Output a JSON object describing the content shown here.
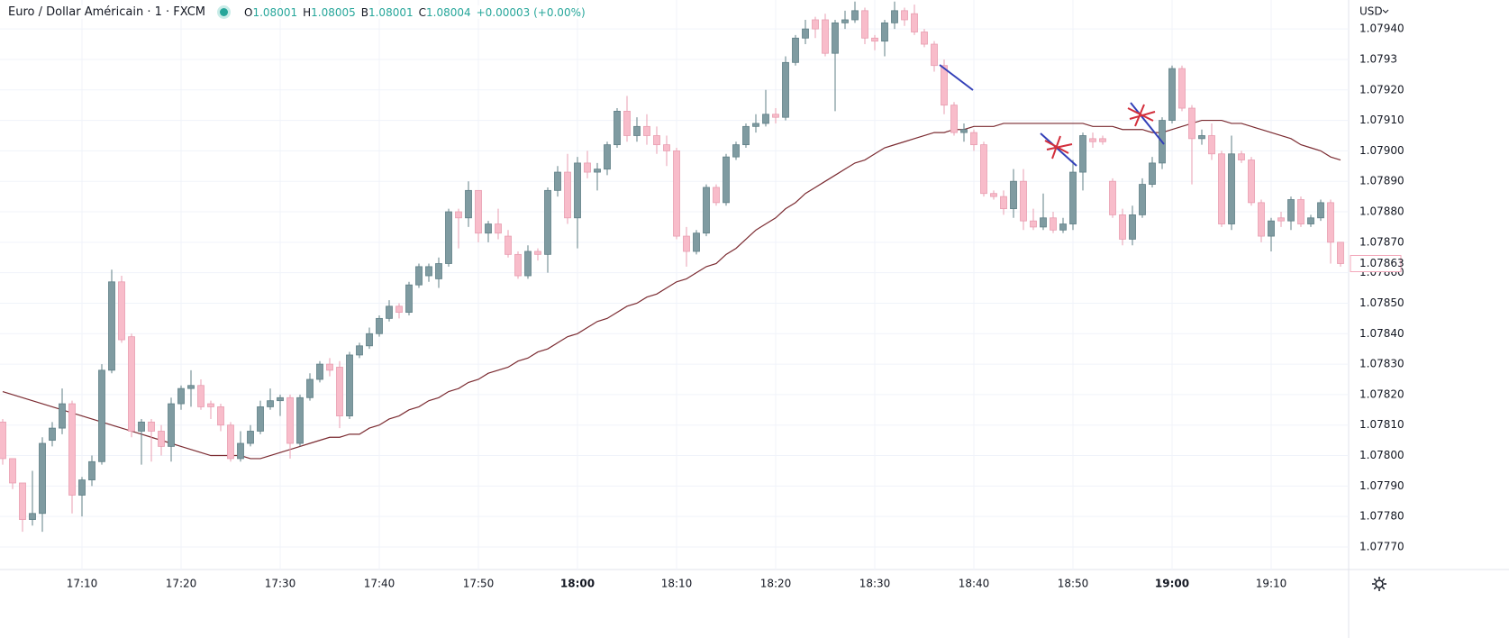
{
  "header": {
    "symbol": "Euro / Dollar Américain · 1 · FXCM",
    "ohlc": [
      {
        "label": "O",
        "value": "1.08001"
      },
      {
        "label": "H",
        "value": "1.08005"
      },
      {
        "label": "B",
        "value": "1.08001"
      },
      {
        "label": "C",
        "value": "1.08004"
      }
    ],
    "change": "+0.00003 (+0.00%)"
  },
  "currency": "USD",
  "chart_data": {
    "type": "candlestick",
    "categories": [
      null,
      null,
      null,
      null,
      null,
      null,
      null,
      null,
      "17:10",
      null,
      null,
      null,
      null,
      null,
      null,
      null,
      null,
      null,
      "17:20",
      null,
      null,
      null,
      null,
      null,
      null,
      null,
      null,
      null,
      "17:30",
      null,
      null,
      null,
      null,
      null,
      null,
      null,
      null,
      null,
      "17:40",
      null,
      null,
      null,
      null,
      null,
      null,
      null,
      null,
      null,
      "17:50",
      null,
      null,
      null,
      null,
      null,
      null,
      null,
      null,
      null,
      "18:00",
      null,
      null,
      null,
      null,
      null,
      null,
      null,
      null,
      null,
      "18:10",
      null,
      null,
      null,
      null,
      null,
      null,
      null,
      null,
      null,
      "18:20",
      null,
      null,
      null,
      null,
      null,
      null,
      null,
      null,
      null,
      "18:30",
      null,
      null,
      null,
      null,
      null,
      null,
      null,
      null,
      null,
      "18:40",
      null,
      null,
      null,
      null,
      null,
      null,
      null,
      null,
      null,
      "18:50",
      null,
      null,
      null,
      null,
      null,
      null,
      null,
      null,
      null,
      "19:00",
      null,
      null,
      null,
      null,
      null,
      null,
      null,
      null,
      null,
      "19:10",
      null,
      null,
      null,
      null,
      null,
      null,
      null
    ],
    "open": [
      1.07811,
      1.07799,
      1.07791,
      1.07779,
      1.07781,
      1.07805,
      1.07809,
      1.07817,
      1.07787,
      1.07792,
      1.07798,
      1.07828,
      1.07857,
      1.07839,
      1.07808,
      1.07811,
      1.07808,
      1.07803,
      1.07817,
      1.07822,
      1.07823,
      1.07817,
      1.07816,
      1.0781,
      1.07799,
      1.07804,
      1.07808,
      1.07816,
      1.07818,
      1.07819,
      1.07804,
      1.07819,
      1.07825,
      1.0783,
      1.07829,
      1.07813,
      1.07833,
      1.07836,
      1.0784,
      1.07845,
      1.07849,
      1.07847,
      1.07856,
      1.07859,
      1.07858,
      1.07863,
      1.0788,
      1.07878,
      1.07887,
      1.07873,
      1.07876,
      1.07872,
      1.07866,
      1.07859,
      1.07867,
      1.07866,
      1.07887,
      1.07893,
      1.07878,
      1.07896,
      1.07893,
      1.07894,
      1.07902,
      1.07913,
      1.07905,
      1.07908,
      1.07905,
      1.07902,
      1.079,
      1.07872,
      1.07867,
      1.07873,
      1.07888,
      1.07883,
      1.07898,
      1.07902,
      1.07908,
      1.07909,
      1.07912,
      1.07911,
      1.07929,
      1.07937,
      1.07943,
      1.07943,
      1.07932,
      1.07942,
      1.07943,
      1.07946,
      1.07937,
      1.07936,
      1.07942,
      1.07946,
      1.07945,
      1.07939,
      1.07935,
      1.07928,
      1.07915,
      1.07906,
      1.07906,
      1.07902,
      1.07886,
      1.07885,
      1.07881,
      1.0789,
      1.07877,
      1.07875,
      1.07878,
      1.07874,
      1.07876,
      1.07893,
      1.07904,
      1.07904,
      1.0789,
      1.07879,
      1.07871,
      1.07879,
      1.07889,
      1.07896,
      1.0791,
      1.07927,
      1.07914,
      1.07904,
      1.07905,
      1.07899,
      1.07876,
      1.07899,
      1.07897,
      1.07883,
      1.07872,
      1.07878,
      1.07877,
      1.07884,
      1.07876,
      1.07878,
      1.07883,
      1.0787
    ],
    "high": [
      1.07812,
      1.07799,
      1.07791,
      1.07795,
      1.07806,
      1.07811,
      1.07822,
      1.07818,
      1.07793,
      1.078,
      1.0783,
      1.07861,
      1.07859,
      1.0784,
      1.07812,
      1.07812,
      1.0781,
      1.07819,
      1.07823,
      1.07828,
      1.07825,
      1.07818,
      1.07817,
      1.07811,
      1.07808,
      1.0781,
      1.07818,
      1.07822,
      1.0782,
      1.0782,
      1.0782,
      1.07827,
      1.07831,
      1.07832,
      1.07831,
      1.07834,
      1.07837,
      1.07842,
      1.07846,
      1.07851,
      1.0785,
      1.07857,
      1.07863,
      1.07863,
      1.07865,
      1.07881,
      1.07881,
      1.0789,
      1.07887,
      1.07877,
      1.07881,
      1.07874,
      1.07867,
      1.07869,
      1.07868,
      1.07888,
      1.07895,
      1.07899,
      1.07898,
      1.079,
      1.07896,
      1.07903,
      1.07914,
      1.07918,
      1.07911,
      1.07912,
      1.07908,
      1.07905,
      1.07901,
      1.07875,
      1.07874,
      1.07889,
      1.07889,
      1.07899,
      1.07903,
      1.07909,
      1.07912,
      1.0792,
      1.07914,
      1.07931,
      1.07938,
      1.07943,
      1.07944,
      1.07945,
      1.07943,
      1.07946,
      1.07949,
      1.07947,
      1.07938,
      1.07943,
      1.07949,
      1.07947,
      1.07948,
      1.0794,
      1.07936,
      1.0793,
      1.07916,
      1.07909,
      1.07907,
      1.07903,
      1.07887,
      1.07887,
      1.07894,
      1.07894,
      1.07881,
      1.07886,
      1.0788,
      1.07878,
      1.07897,
      1.07906,
      1.07906,
      1.07905,
      1.07891,
      1.07881,
      1.07882,
      1.07891,
      1.07898,
      1.07911,
      1.07928,
      1.07928,
      1.07915,
      1.07907,
      1.07909,
      1.079,
      1.07905,
      1.079,
      1.07898,
      1.07884,
      1.07878,
      1.0788,
      1.07885,
      1.07885,
      1.07879,
      1.07884,
      1.07884,
      1.0787
    ],
    "low": [
      1.07797,
      1.07789,
      1.07775,
      1.07777,
      1.07775,
      1.07803,
      1.07807,
      1.07781,
      1.0778,
      1.0779,
      1.07797,
      1.07827,
      1.07837,
      1.07806,
      1.07797,
      1.07798,
      1.078,
      1.07798,
      1.07815,
      1.07816,
      1.07815,
      1.07812,
      1.07808,
      1.07798,
      1.07798,
      1.07803,
      1.07807,
      1.07815,
      1.07813,
      1.07799,
      1.07803,
      1.07818,
      1.07824,
      1.07826,
      1.07809,
      1.07812,
      1.07832,
      1.07835,
      1.07839,
      1.07844,
      1.07845,
      1.07846,
      1.07855,
      1.07857,
      1.07855,
      1.07862,
      1.07868,
      1.07875,
      1.0787,
      1.0787,
      1.07871,
      1.07865,
      1.07858,
      1.07858,
      1.07864,
      1.0786,
      1.07885,
      1.07876,
      1.07868,
      1.07891,
      1.07887,
      1.07892,
      1.07901,
      1.07903,
      1.07903,
      1.07902,
      1.07899,
      1.07895,
      1.07871,
      1.07862,
      1.07866,
      1.07872,
      1.07882,
      1.07882,
      1.07897,
      1.07901,
      1.07906,
      1.07908,
      1.07909,
      1.0791,
      1.07928,
      1.07935,
      1.07937,
      1.07931,
      1.07913,
      1.0794,
      1.07942,
      1.07935,
      1.07933,
      1.07931,
      1.0794,
      1.07941,
      1.07938,
      1.07934,
      1.07926,
      1.07912,
      1.07905,
      1.07903,
      1.079,
      1.07885,
      1.07884,
      1.07879,
      1.07878,
      1.07874,
      1.07874,
      1.07874,
      1.07873,
      1.07873,
      1.07874,
      1.07887,
      1.07901,
      1.07902,
      1.07878,
      1.07869,
      1.07869,
      1.07878,
      1.07888,
      1.07894,
      1.07909,
      1.07913,
      1.07889,
      1.07902,
      1.07897,
      1.07875,
      1.07874,
      1.07896,
      1.07882,
      1.0787,
      1.07867,
      1.07875,
      1.07874,
      1.07875,
      1.07875,
      1.07877,
      1.07863,
      1.07862
    ],
    "close": [
      1.07799,
      1.07791,
      1.07779,
      1.07781,
      1.07804,
      1.07809,
      1.07817,
      1.07787,
      1.07792,
      1.07798,
      1.07828,
      1.07857,
      1.07838,
      1.07808,
      1.07811,
      1.07808,
      1.07803,
      1.07817,
      1.07822,
      1.07823,
      1.07816,
      1.07816,
      1.0781,
      1.07799,
      1.07804,
      1.07808,
      1.07816,
      1.07818,
      1.07819,
      1.07804,
      1.07819,
      1.07825,
      1.0783,
      1.07828,
      1.07813,
      1.07833,
      1.07836,
      1.0784,
      1.07845,
      1.07849,
      1.07847,
      1.07856,
      1.07862,
      1.07862,
      1.07863,
      1.0788,
      1.07878,
      1.07887,
      1.07873,
      1.07876,
      1.07873,
      1.07866,
      1.07859,
      1.07867,
      1.07866,
      1.07887,
      1.07893,
      1.07878,
      1.07896,
      1.07893,
      1.07894,
      1.07902,
      1.07913,
      1.07905,
      1.07908,
      1.07905,
      1.07902,
      1.079,
      1.07872,
      1.07867,
      1.07873,
      1.07888,
      1.07883,
      1.07898,
      1.07902,
      1.07908,
      1.07909,
      1.07912,
      1.07911,
      1.07929,
      1.07937,
      1.0794,
      1.0794,
      1.07932,
      1.07942,
      1.07943,
      1.07946,
      1.07937,
      1.07936,
      1.07942,
      1.07946,
      1.07943,
      1.07939,
      1.07935,
      1.07928,
      1.07915,
      1.07906,
      1.07907,
      1.07902,
      1.07886,
      1.07885,
      1.07881,
      1.0789,
      1.07877,
      1.07875,
      1.07878,
      1.07874,
      1.07876,
      1.07893,
      1.07905,
      1.07903,
      1.07903,
      1.07879,
      1.07871,
      1.07879,
      1.07889,
      1.07896,
      1.0791,
      1.07927,
      1.07914,
      1.07904,
      1.07905,
      1.07899,
      1.07876,
      1.07899,
      1.07897,
      1.07883,
      1.07872,
      1.07877,
      1.07877,
      1.07884,
      1.07876,
      1.07878,
      1.07883,
      1.0787,
      1.07863
    ],
    "up_color": "#7f9ba1",
    "down_color": "#f8bcca",
    "ma": {
      "color": "#7b2b31",
      "values": [
        1.07821,
        1.0782,
        1.07819,
        1.07818,
        1.07817,
        1.07816,
        1.07815,
        1.07814,
        1.07813,
        1.07812,
        1.07811,
        1.0781,
        1.07809,
        1.07808,
        1.07807,
        1.07806,
        1.07805,
        1.07804,
        1.07803,
        1.07802,
        1.07801,
        1.078,
        1.078,
        1.078,
        1.078,
        1.07799,
        1.07799,
        1.078,
        1.07801,
        1.07802,
        1.07803,
        1.07804,
        1.07805,
        1.07806,
        1.07806,
        1.07807,
        1.07807,
        1.07809,
        1.0781,
        1.07812,
        1.07813,
        1.07815,
        1.07816,
        1.07818,
        1.07819,
        1.07821,
        1.07822,
        1.07824,
        1.07825,
        1.07827,
        1.07828,
        1.07829,
        1.07831,
        1.07832,
        1.07834,
        1.07835,
        1.07837,
        1.07839,
        1.0784,
        1.07842,
        1.07844,
        1.07845,
        1.07847,
        1.07849,
        1.0785,
        1.07852,
        1.07853,
        1.07855,
        1.07857,
        1.07858,
        1.0786,
        1.07862,
        1.07863,
        1.07866,
        1.07868,
        1.07871,
        1.07874,
        1.07876,
        1.07878,
        1.07881,
        1.07883,
        1.07886,
        1.07888,
        1.0789,
        1.07892,
        1.07894,
        1.07896,
        1.07897,
        1.07899,
        1.07901,
        1.07902,
        1.07903,
        1.07904,
        1.07905,
        1.07906,
        1.07906,
        1.07907,
        1.07907,
        1.07908,
        1.07908,
        1.07908,
        1.07909,
        1.07909,
        1.07909,
        1.07909,
        1.07909,
        1.07909,
        1.07909,
        1.07909,
        1.07909,
        1.07908,
        1.07908,
        1.07908,
        1.07907,
        1.07907,
        1.07907,
        1.07906,
        1.07906,
        1.07907,
        1.07908,
        1.07909,
        1.0791,
        1.0791,
        1.0791,
        1.07909,
        1.07909,
        1.07908,
        1.07907,
        1.07906,
        1.07905,
        1.07904,
        1.07902,
        1.07901,
        1.079,
        1.07898,
        1.07897
      ]
    },
    "ylim": [
      1.077626,
      1.079495
    ],
    "yticks": [
      {
        "value": 1.0794,
        "label": "1.07940"
      },
      1.0793,
      {
        "value": 1.0792,
        "label": "1.07920"
      },
      {
        "value": 1.0791,
        "label": "1.07910"
      },
      {
        "value": 1.079,
        "label": "1.07900"
      },
      {
        "value": 1.0789,
        "label": "1.07890"
      },
      {
        "value": 1.0788,
        "label": "1.07880"
      },
      {
        "value": 1.0787,
        "label": "1.07870"
      },
      {
        "value": 1.0786,
        "label": "1.07860"
      },
      {
        "value": 1.0785,
        "label": "1.07850"
      },
      {
        "value": 1.0784,
        "label": "1.07840"
      },
      {
        "value": 1.0783,
        "label": "1.07830"
      },
      {
        "value": 1.0782,
        "label": "1.07820"
      },
      {
        "value": 1.0781,
        "label": "1.07810"
      },
      {
        "value": 1.078,
        "label": "1.07800"
      },
      {
        "value": 1.0779,
        "label": "1.07790"
      },
      {
        "value": 1.0778,
        "label": "1.07780"
      },
      {
        "value": 1.0777,
        "label": "1.07770"
      }
    ],
    "last_price": 1.07863,
    "grid": true
  }
}
